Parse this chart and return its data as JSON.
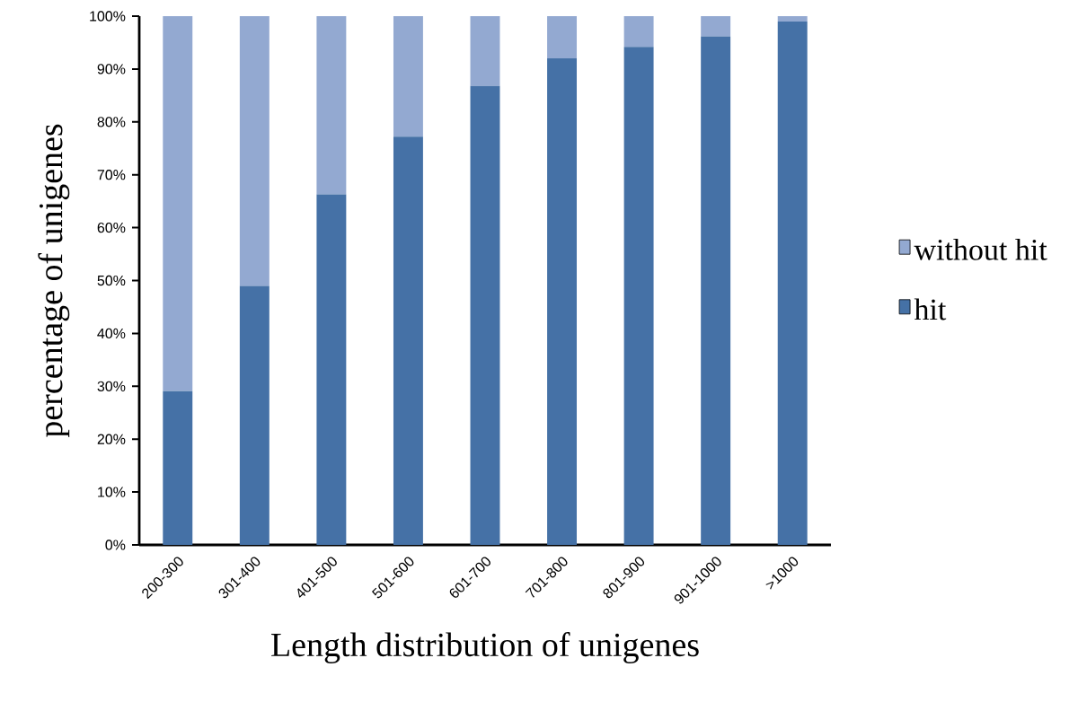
{
  "chart_data": {
    "type": "bar",
    "stacked": true,
    "xlabel": "Length distribution of unigenes",
    "ylabel": "percentage of unigenes",
    "categories": [
      "200-300",
      "301-400",
      "401-500",
      "501-600",
      "601-700",
      "701-800",
      "801-900",
      "901-1000",
      ">1000"
    ],
    "series": [
      {
        "name": "hit",
        "color": "#4571a6",
        "values": [
          29.1,
          49.0,
          66.3,
          77.2,
          86.8,
          92.0,
          94.2,
          96.2,
          99.0
        ]
      },
      {
        "name": "without hit",
        "color": "#93a9d1",
        "values": [
          70.9,
          51.0,
          33.7,
          22.8,
          13.2,
          8.0,
          5.8,
          3.8,
          1.0
        ]
      }
    ],
    "ylim": [
      0,
      100
    ],
    "yticks": [
      {
        "value": 0,
        "label": "0%"
      },
      {
        "value": 10,
        "label": "10%"
      },
      {
        "value": 20,
        "label": "20%"
      },
      {
        "value": 30,
        "label": "30%"
      },
      {
        "value": 40,
        "label": "40%"
      },
      {
        "value": 50,
        "label": "50%"
      },
      {
        "value": 60,
        "label": "60%"
      },
      {
        "value": 70,
        "label": "70%"
      },
      {
        "value": 80,
        "label": "80%"
      },
      {
        "value": 90,
        "label": "90%"
      },
      {
        "value": 100,
        "label": "100%"
      }
    ],
    "legend": "right",
    "grid": false
  }
}
